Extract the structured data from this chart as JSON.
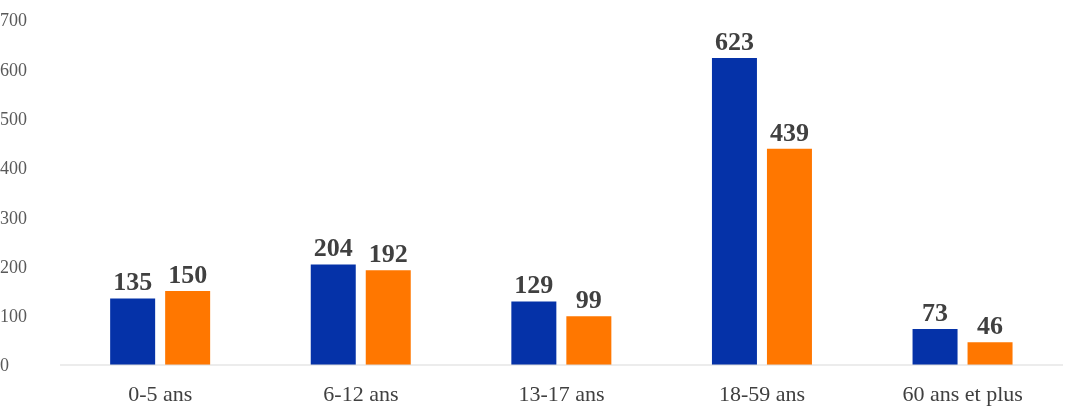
{
  "chart_data": {
    "type": "bar",
    "categories": [
      "0-5 ans",
      "6-12 ans",
      "13-17 ans",
      "18-59 ans",
      "60 ans et plus"
    ],
    "series": [
      {
        "color": "#0532a8",
        "values": [
          135,
          204,
          129,
          623,
          73
        ]
      },
      {
        "color": "#ff7700",
        "values": [
          150,
          192,
          99,
          439,
          46
        ]
      }
    ],
    "ylim": [
      0,
      700
    ],
    "yticks": [
      0,
      100,
      200,
      300,
      400,
      500,
      600,
      700
    ],
    "grid": false,
    "legend": false,
    "data_labels": true
  }
}
